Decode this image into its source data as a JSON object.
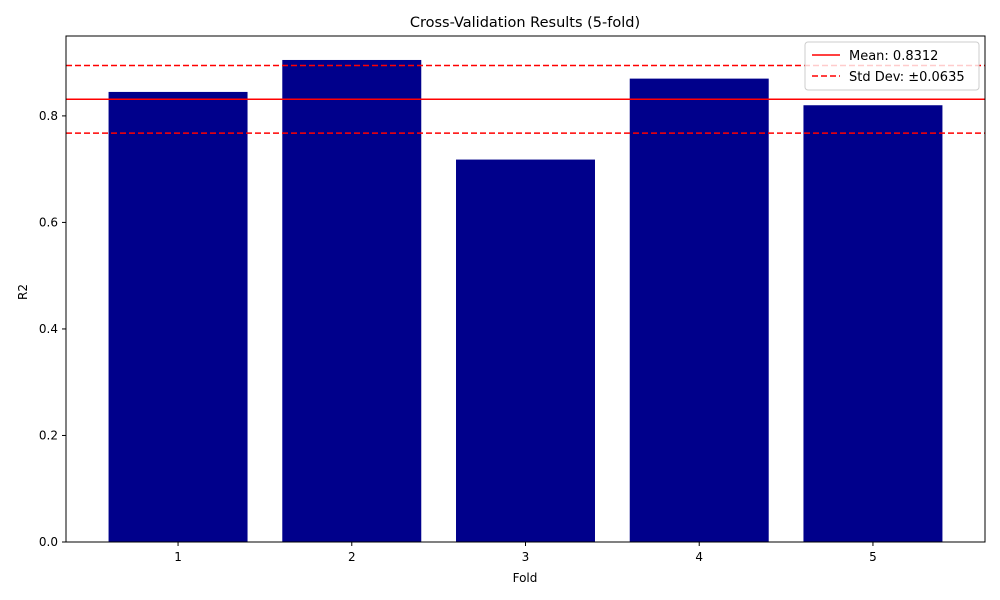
{
  "chart_data": {
    "type": "bar",
    "title": "Cross-Validation Results (5-fold)",
    "xlabel": "Fold",
    "ylabel": "R2",
    "categories": [
      "1",
      "2",
      "3",
      "4",
      "5"
    ],
    "values": [
      0.845,
      0.905,
      0.718,
      0.87,
      0.82
    ],
    "ylim": [
      0,
      0.95
    ],
    "yticks": [
      0.0,
      0.2,
      0.4,
      0.6,
      0.8
    ],
    "ytick_labels": [
      "0.0",
      "0.2",
      "0.4",
      "0.6",
      "0.8"
    ],
    "bar_color": "#00008b",
    "mean": 0.8312,
    "std": 0.0635,
    "mean_color": "#ff0000",
    "legend": {
      "position": "top-right",
      "entries": [
        {
          "label": "Mean: 0.8312",
          "style": "solid",
          "color": "#ff0000"
        },
        {
          "label": "Std Dev: ±0.0635",
          "style": "dashed",
          "color": "#ff0000"
        }
      ]
    },
    "grid": false
  }
}
